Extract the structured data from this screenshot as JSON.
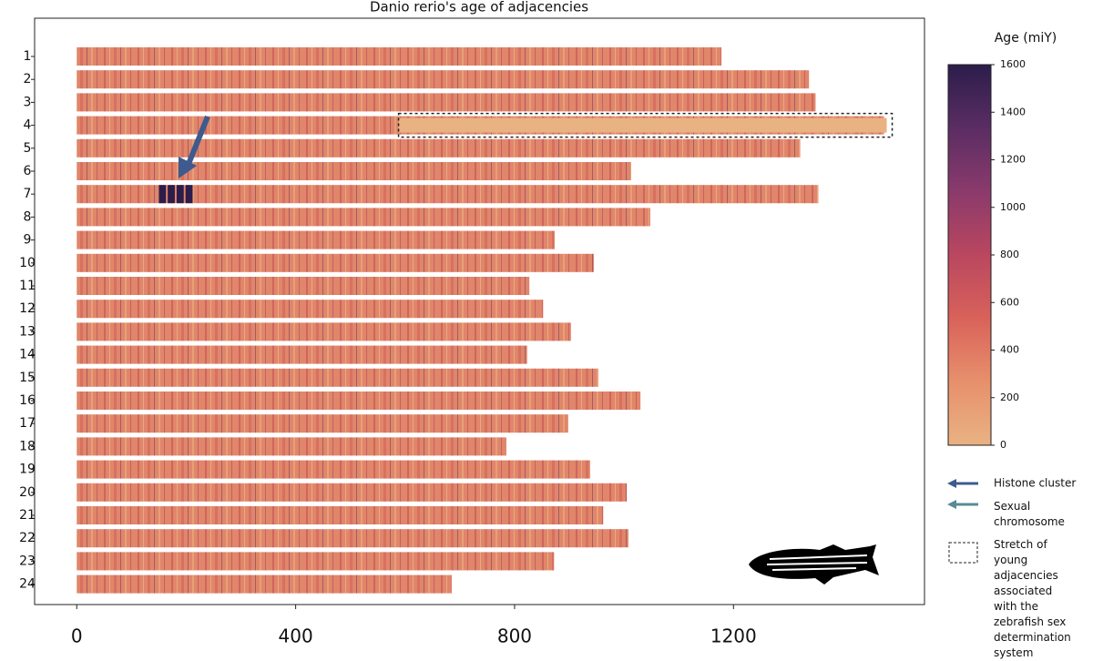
{
  "chart_data": {
    "type": "chromosome",
    "title": "Danio rerio's age of adjacencies",
    "categories": [
      "1",
      "2",
      "3",
      "4",
      "5",
      "6",
      "7",
      "8",
      "9",
      "10",
      "11",
      "12",
      "13",
      "14",
      "15",
      "16",
      "17",
      "18",
      "19",
      "20",
      "21",
      "22",
      "23",
      "24"
    ],
    "values": [
      1178,
      1338,
      1350,
      1475,
      1322,
      1013,
      1355,
      1048,
      873,
      945,
      827,
      852,
      903,
      823,
      953,
      1030,
      898,
      785,
      938,
      1005,
      962,
      1008,
      872,
      685
    ],
    "color": "#e0866a",
    "xlim": [
      -77,
      1549
    ],
    "xticks": [
      0,
      400,
      800,
      1200
    ],
    "colorbar": {
      "title": "Age (miY)",
      "lim": [
        0,
        1600
      ],
      "ticks": [
        0,
        200,
        400,
        600,
        800,
        1000,
        1200,
        1400,
        1600
      ],
      "colors": [
        "#e9b283",
        "#e7906c",
        "#d9625a",
        "#b9475f",
        "#8b3a6c",
        "#5a2d63",
        "#2c1d4a"
      ]
    },
    "histone_cluster": {
      "label": "Histone cluster",
      "category": 6,
      "start": 150,
      "end": 215,
      "value": 1500,
      "color": "#3e5a8f"
    },
    "sex_chromosome": {
      "label": "Sexual chromosome",
      "color": "#5a8a94"
    },
    "young_stretch": {
      "label": "Stretch of young adjacencies associated with the zebrafish sex determination system",
      "category": 3,
      "start": 588,
      "end": 1480
    }
  }
}
